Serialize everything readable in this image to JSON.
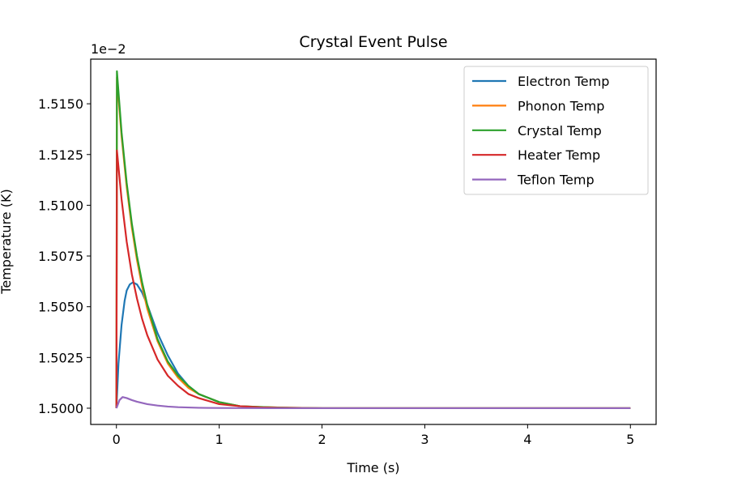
{
  "chart_data": {
    "type": "line",
    "title": "Crystal Event Pulse",
    "xlabel": "Time (s)",
    "ylabel": "Temperature (K)",
    "offset_label": "1e−2",
    "xlim": [
      -0.25,
      5.25
    ],
    "ylim": [
      1.4992,
      1.5172
    ],
    "xticks": [
      0,
      1,
      2,
      3,
      4,
      5
    ],
    "xtick_labels": [
      "0",
      "1",
      "2",
      "3",
      "4",
      "5"
    ],
    "yticks": [
      1.5,
      1.5025,
      1.505,
      1.5075,
      1.51,
      1.5125,
      1.515
    ],
    "ytick_labels": [
      "1.5000",
      "1.5025",
      "1.5050",
      "1.5075",
      "1.5100",
      "1.5125",
      "1.5150"
    ],
    "grid": false,
    "legend_position": "top-right",
    "series": [
      {
        "name": "Electron Temp",
        "color": "#1f77b4",
        "x": [
          0,
          0.02,
          0.05,
          0.08,
          0.1,
          0.13,
          0.16,
          0.2,
          0.25,
          0.3,
          0.35,
          0.4,
          0.5,
          0.6,
          0.7,
          0.8,
          0.9,
          1.0,
          1.2,
          1.4,
          1.6,
          1.8,
          2.0,
          2.5,
          3.0,
          4.0,
          5.0
        ],
        "y": [
          1.5,
          1.5022,
          1.5041,
          1.5053,
          1.5058,
          1.5061,
          1.5062,
          1.5061,
          1.5057,
          1.5051,
          1.5044,
          1.5037,
          1.5026,
          1.5017,
          1.5011,
          1.5007,
          1.5005,
          1.5003,
          1.5001,
          1.50005,
          1.50002,
          1.50001,
          1.5,
          1.5,
          1.5,
          1.5,
          1.5
        ]
      },
      {
        "name": "Phonon Temp",
        "color": "#ff7f0e",
        "x": [
          0,
          0.005,
          0.05,
          0.1,
          0.15,
          0.2,
          0.25,
          0.3,
          0.4,
          0.5,
          0.6,
          0.7,
          0.8,
          1.0,
          1.2,
          1.4,
          1.6,
          2.0,
          2.5,
          3.0,
          4.0,
          5.0
        ],
        "y": [
          1.5,
          1.5163,
          1.5134,
          1.5109,
          1.5089,
          1.5073,
          1.506,
          1.5049,
          1.5033,
          1.5022,
          1.5015,
          1.501,
          1.5007,
          1.5003,
          1.5001,
          1.50006,
          1.50003,
          1.5,
          1.5,
          1.5,
          1.5,
          1.5
        ]
      },
      {
        "name": "Crystal Temp",
        "color": "#2ca02c",
        "x": [
          0,
          0.005,
          0.05,
          0.1,
          0.15,
          0.2,
          0.25,
          0.3,
          0.4,
          0.5,
          0.6,
          0.7,
          0.8,
          1.0,
          1.2,
          1.4,
          1.6,
          2.0,
          2.5,
          3.0,
          4.0,
          5.0
        ],
        "y": [
          1.5,
          1.5166,
          1.5136,
          1.5111,
          1.5091,
          1.5075,
          1.5062,
          1.5051,
          1.5034,
          1.5023,
          1.5016,
          1.5011,
          1.5007,
          1.5003,
          1.5001,
          1.50006,
          1.50003,
          1.5,
          1.5,
          1.5,
          1.5,
          1.5
        ]
      },
      {
        "name": "Heater Temp",
        "color": "#d62728",
        "x": [
          0,
          0.005,
          0.05,
          0.1,
          0.15,
          0.2,
          0.25,
          0.3,
          0.4,
          0.5,
          0.6,
          0.7,
          0.8,
          1.0,
          1.2,
          1.4,
          1.6,
          2.0,
          2.5,
          3.0,
          4.0,
          5.0
        ],
        "y": [
          1.5,
          1.5127,
          1.5103,
          1.5082,
          1.5066,
          1.5054,
          1.5044,
          1.5036,
          1.5024,
          1.5016,
          1.5011,
          1.5007,
          1.5005,
          1.5002,
          1.5001,
          1.50004,
          1.50002,
          1.5,
          1.5,
          1.5,
          1.5,
          1.5
        ]
      },
      {
        "name": "Teflon Temp",
        "color": "#9467bd",
        "x": [
          0,
          0.03,
          0.06,
          0.1,
          0.15,
          0.2,
          0.3,
          0.4,
          0.5,
          0.6,
          0.8,
          1.0,
          1.5,
          2.0,
          3.0,
          5.0
        ],
        "y": [
          1.5,
          1.5004,
          1.50055,
          1.5005,
          1.5004,
          1.50032,
          1.5002,
          1.50013,
          1.50008,
          1.50005,
          1.50002,
          1.50001,
          1.5,
          1.5,
          1.5,
          1.5
        ]
      }
    ]
  }
}
